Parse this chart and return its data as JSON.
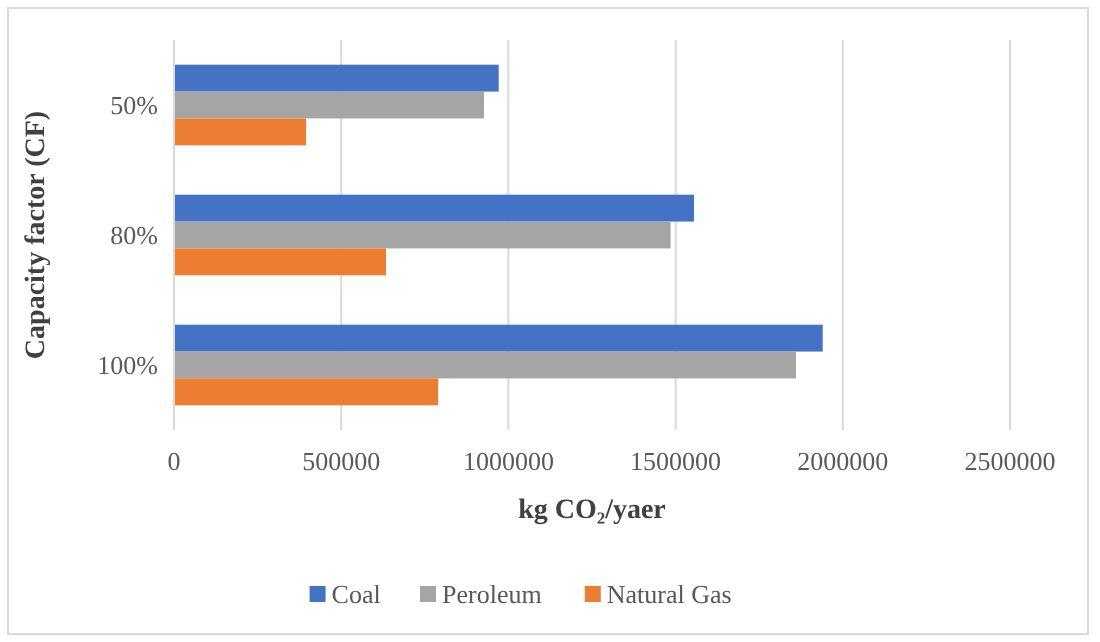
{
  "chart_data": {
    "type": "bar",
    "orientation": "horizontal",
    "xlabel": "kg CO₂/yaer",
    "ylabel": "Capacity factor (CF)",
    "categories": [
      "50%",
      "80%",
      "100%"
    ],
    "series": [
      {
        "name": "Coal",
        "color": "#4472c4",
        "values": [
          971000,
          1555000,
          1940000
        ]
      },
      {
        "name": "Peroleum",
        "color": "#a5a5a5",
        "values": [
          927000,
          1485000,
          1860000
        ]
      },
      {
        "name": "Natural Gas",
        "color": "#ed7d31",
        "values": [
          395000,
          634000,
          790000
        ]
      }
    ],
    "xlim": [
      0,
      2500000
    ],
    "xticks": [
      0,
      500000,
      1000000,
      1500000,
      2000000,
      2500000
    ],
    "grid": "x",
    "legend": "bottom"
  }
}
